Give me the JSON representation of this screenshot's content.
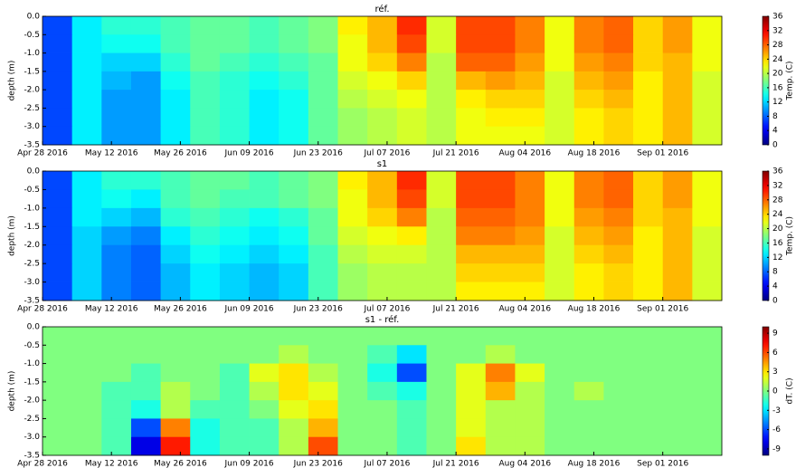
{
  "chart_data": [
    {
      "type": "heatmap",
      "title": "réf.",
      "ylabel": "depth (m)",
      "colorbar_label": "Temp. (C)",
      "colormap": "jet",
      "xbins": [
        "2016-04-28",
        "2016-05-04",
        "2016-05-10",
        "2016-05-16",
        "2016-05-22",
        "2016-05-28",
        "2016-06-03",
        "2016-06-09",
        "2016-06-15",
        "2016-06-21",
        "2016-06-27",
        "2016-07-03",
        "2016-07-09",
        "2016-07-15",
        "2016-07-21",
        "2016-07-27",
        "2016-08-02",
        "2016-08-08",
        "2016-08-14",
        "2016-08-20",
        "2016-08-26",
        "2016-09-01",
        "2016-09-07",
        "2016-09-13"
      ],
      "ybins": [
        0,
        -0.5,
        -1,
        -1.5,
        -2,
        -2.5,
        -3,
        -3.5
      ],
      "values": [
        [
          7,
          13,
          15,
          15,
          16,
          17,
          17,
          16,
          17,
          18,
          23,
          25,
          30,
          21,
          29,
          29,
          27,
          22,
          27,
          28,
          24,
          26,
          22
        ],
        [
          7,
          13,
          14,
          14,
          16,
          17,
          17,
          16,
          17,
          18,
          22,
          25,
          29,
          21,
          29,
          29,
          27,
          22,
          27,
          28,
          24,
          26,
          22
        ],
        [
          7,
          13,
          12,
          12,
          15,
          17,
          16,
          15,
          16,
          17,
          22,
          24,
          27,
          20,
          28,
          28,
          26,
          22,
          26,
          27,
          24,
          25,
          22
        ],
        [
          7,
          13,
          11,
          10,
          14,
          16,
          15,
          14,
          15,
          17,
          21,
          22,
          24,
          20,
          25,
          26,
          25,
          21,
          25,
          26,
          23,
          25,
          21
        ],
        [
          7,
          13,
          10,
          10,
          13,
          16,
          15,
          13,
          14,
          17,
          20,
          21,
          22,
          20,
          23,
          24,
          24,
          21,
          24,
          25,
          23,
          25,
          21
        ],
        [
          7,
          13,
          10,
          10,
          13,
          16,
          15,
          13,
          14,
          17,
          19,
          20,
          21,
          20,
          22,
          23,
          23,
          21,
          23,
          24,
          23,
          25,
          21
        ],
        [
          7,
          13,
          10,
          10,
          13,
          16,
          15,
          13,
          14,
          17,
          19,
          20,
          21,
          20,
          22,
          22,
          22,
          21,
          23,
          24,
          23,
          25,
          21
        ]
      ],
      "xlim": [
        "2016-04-28",
        "2016-09-13"
      ],
      "xticks": [
        {
          "value": "2016-04-28",
          "label": "Apr 28 2016"
        },
        {
          "value": "2016-05-12",
          "label": "May 12 2016"
        },
        {
          "value": "2016-05-26",
          "label": "May 26 2016"
        },
        {
          "value": "2016-06-09",
          "label": "Jun 09 2016"
        },
        {
          "value": "2016-06-23",
          "label": "Jun 23 2016"
        },
        {
          "value": "2016-07-07",
          "label": "Jul 07 2016"
        },
        {
          "value": "2016-07-21",
          "label": "Jul 21 2016"
        },
        {
          "value": "2016-08-04",
          "label": "Aug 04 2016"
        },
        {
          "value": "2016-08-18",
          "label": "Aug 18 2016"
        },
        {
          "value": "2016-09-01",
          "label": "Sep 01 2016"
        }
      ],
      "ylim": [
        -3.5,
        0
      ],
      "yticks": [
        {
          "value": 0,
          "label": "0.0"
        },
        -0.5,
        {
          "value": -1,
          "label": "-1.0"
        },
        -1.5,
        {
          "value": -2,
          "label": "-2.0"
        },
        -2.5,
        {
          "value": -3,
          "label": "-3.0"
        },
        -3.5
      ],
      "clim": [
        0,
        36
      ],
      "cticks": [
        0,
        4,
        8,
        12,
        16,
        20,
        24,
        28,
        32,
        36
      ]
    },
    {
      "type": "heatmap",
      "title": "s1",
      "ylabel": "depth (m)",
      "colorbar_label": "Temp. (C)",
      "colormap": "jet",
      "xbins": [
        "2016-04-28",
        "2016-05-04",
        "2016-05-10",
        "2016-05-16",
        "2016-05-22",
        "2016-05-28",
        "2016-06-03",
        "2016-06-09",
        "2016-06-15",
        "2016-06-21",
        "2016-06-27",
        "2016-07-03",
        "2016-07-09",
        "2016-07-15",
        "2016-07-21",
        "2016-07-27",
        "2016-08-02",
        "2016-08-08",
        "2016-08-14",
        "2016-08-20",
        "2016-08-26",
        "2016-09-01",
        "2016-09-07",
        "2016-09-13"
      ],
      "ybins": [
        0,
        -0.5,
        -1,
        -1.5,
        -2,
        -2.5,
        -3,
        -3.5
      ],
      "values": [
        [
          7,
          13,
          15,
          15,
          16,
          17,
          17,
          16,
          17,
          18,
          23,
          25,
          30,
          21,
          29,
          29,
          27,
          22,
          27,
          28,
          24,
          26,
          22
        ],
        [
          7,
          13,
          14,
          13,
          16,
          17,
          16,
          16,
          17,
          18,
          22,
          25,
          29,
          21,
          29,
          29,
          27,
          22,
          27,
          28,
          24,
          26,
          22
        ],
        [
          7,
          13,
          12,
          11,
          15,
          16,
          15,
          14,
          15,
          17,
          22,
          24,
          27,
          20,
          28,
          28,
          27,
          22,
          26,
          27,
          24,
          25,
          22
        ],
        [
          7,
          12,
          10,
          9,
          13,
          15,
          14,
          13,
          14,
          17,
          21,
          22,
          23,
          20,
          27,
          27,
          26,
          21,
          25,
          26,
          23,
          25,
          21
        ],
        [
          7,
          12,
          9,
          8,
          12,
          14,
          13,
          12,
          13,
          16,
          20,
          21,
          21,
          20,
          25,
          25,
          25,
          21,
          24,
          25,
          23,
          25,
          21
        ],
        [
          7,
          12,
          9,
          8,
          11,
          13,
          12,
          11,
          12,
          16,
          19,
          20,
          20,
          20,
          24,
          24,
          24,
          21,
          23,
          24,
          23,
          25,
          21
        ],
        [
          7,
          12,
          9,
          8,
          11,
          13,
          12,
          11,
          12,
          16,
          19,
          20,
          20,
          20,
          23,
          23,
          23,
          21,
          23,
          24,
          23,
          25,
          21
        ]
      ],
      "xlim": [
        "2016-04-28",
        "2016-09-13"
      ],
      "xticks": [
        {
          "value": "2016-04-28",
          "label": "Apr 28 2016"
        },
        {
          "value": "2016-05-12",
          "label": "May 12 2016"
        },
        {
          "value": "2016-05-26",
          "label": "May 26 2016"
        },
        {
          "value": "2016-06-09",
          "label": "Jun 09 2016"
        },
        {
          "value": "2016-06-23",
          "label": "Jun 23 2016"
        },
        {
          "value": "2016-07-07",
          "label": "Jul 07 2016"
        },
        {
          "value": "2016-07-21",
          "label": "Jul 21 2016"
        },
        {
          "value": "2016-08-04",
          "label": "Aug 04 2016"
        },
        {
          "value": "2016-08-18",
          "label": "Aug 18 2016"
        },
        {
          "value": "2016-09-01",
          "label": "Sep 01 2016"
        }
      ],
      "ylim": [
        -3.5,
        0
      ],
      "yticks": [
        {
          "value": 0,
          "label": "0.0"
        },
        -0.5,
        {
          "value": -1,
          "label": "-1.0"
        },
        -1.5,
        {
          "value": -2,
          "label": "-2.0"
        },
        -2.5,
        {
          "value": -3,
          "label": "-3.0"
        },
        -3.5
      ],
      "clim": [
        0,
        36
      ],
      "cticks": [
        0,
        4,
        8,
        12,
        16,
        20,
        24,
        28,
        32,
        36
      ]
    },
    {
      "type": "heatmap",
      "title": "s1 - réf.",
      "ylabel": "depth (m)",
      "colorbar_label": "dT. (C)",
      "colormap": "jet",
      "xbins": [
        "2016-04-28",
        "2016-05-04",
        "2016-05-10",
        "2016-05-16",
        "2016-05-22",
        "2016-05-28",
        "2016-06-03",
        "2016-06-09",
        "2016-06-15",
        "2016-06-21",
        "2016-06-27",
        "2016-07-03",
        "2016-07-09",
        "2016-07-15",
        "2016-07-21",
        "2016-07-27",
        "2016-08-02",
        "2016-08-08",
        "2016-08-14",
        "2016-08-20",
        "2016-08-26",
        "2016-09-01",
        "2016-09-07",
        "2016-09-13"
      ],
      "ybins": [
        0,
        -0.5,
        -1,
        -1.5,
        -2,
        -2.5,
        -3,
        -3.5
      ],
      "values": [
        [
          0,
          0,
          0,
          0,
          0,
          0,
          0,
          0,
          0,
          0,
          0,
          0,
          0,
          0,
          0,
          0,
          0,
          0,
          0,
          0,
          0,
          0,
          0
        ],
        [
          0,
          0,
          0,
          0,
          0,
          0,
          0,
          0,
          1,
          0,
          0,
          -1,
          -3,
          0,
          0,
          1,
          0,
          0,
          0,
          0,
          0,
          0,
          0
        ],
        [
          0,
          0,
          0,
          -1,
          0,
          0,
          -1,
          2,
          3,
          1,
          0,
          -2,
          -6,
          0,
          2,
          5,
          2,
          0,
          0,
          0,
          0,
          0,
          0
        ],
        [
          0,
          0,
          -1,
          -1,
          1,
          0,
          -1,
          1,
          3,
          2,
          0,
          -1,
          -2,
          0,
          2,
          4,
          1,
          0,
          1,
          0,
          0,
          0,
          0
        ],
        [
          0,
          0,
          -1,
          -2,
          1,
          -1,
          -1,
          0,
          2,
          3,
          0,
          0,
          -1,
          0,
          2,
          1,
          1,
          0,
          0,
          0,
          0,
          0,
          0
        ],
        [
          0,
          0,
          -1,
          -6,
          5,
          -2,
          -1,
          -1,
          1,
          4,
          0,
          0,
          -1,
          0,
          2,
          1,
          1,
          0,
          0,
          0,
          0,
          0,
          0
        ],
        [
          0,
          0,
          -1,
          -8,
          7,
          -2,
          -1,
          -1,
          1,
          6,
          0,
          0,
          -1,
          0,
          3,
          1,
          1,
          0,
          0,
          0,
          0,
          0,
          0
        ]
      ],
      "xlim": [
        "2016-04-28",
        "2016-09-13"
      ],
      "xticks": [
        {
          "value": "2016-04-28",
          "label": "Apr 28 2016"
        },
        {
          "value": "2016-05-12",
          "label": "May 12 2016"
        },
        {
          "value": "2016-05-26",
          "label": "May 26 2016"
        },
        {
          "value": "2016-06-09",
          "label": "Jun 09 2016"
        },
        {
          "value": "2016-06-23",
          "label": "Jun 23 2016"
        },
        {
          "value": "2016-07-07",
          "label": "Jul 07 2016"
        },
        {
          "value": "2016-07-21",
          "label": "Jul 21 2016"
        },
        {
          "value": "2016-08-04",
          "label": "Aug 04 2016"
        },
        {
          "value": "2016-08-18",
          "label": "Aug 18 2016"
        },
        {
          "value": "2016-09-01",
          "label": "Sep 01 2016"
        }
      ],
      "ylim": [
        -3.5,
        0
      ],
      "yticks": [
        {
          "value": 0,
          "label": "0.0"
        },
        -0.5,
        {
          "value": -1,
          "label": "-1.0"
        },
        -1.5,
        {
          "value": -2,
          "label": "-2.0"
        },
        -2.5,
        {
          "value": -3,
          "label": "-3.0"
        },
        -3.5
      ],
      "clim": [
        -10,
        10
      ],
      "cticks": [
        -9,
        -6,
        -3,
        0,
        3,
        6,
        9
      ]
    }
  ]
}
